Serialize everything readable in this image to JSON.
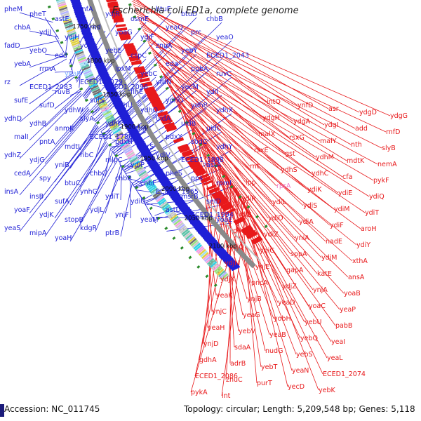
{
  "title": "Escherichia coli ED1a, complete genome",
  "footer": {
    "accession": "Accession: NC_011745",
    "summary": "Topology: circular; Length: 5,209,548 bp; Genes: 5,118"
  },
  "colors": {
    "forward": "#1f1fd6",
    "reverse": "#e8191b",
    "backbone": "#8a8a8a",
    "tick": "#2a8a2a",
    "highlight_fwd": "#7fb0ff",
    "highlight_rev": "#f07ac8"
  },
  "kbp_labels": [
    "1700 kbp",
    "1750 kbp",
    "1800 kbp",
    "1850 kbp",
    "1900 kbp",
    "1950 kbp",
    "2000 kbp",
    "2050 kbp",
    "2100 kbp"
  ],
  "forward_genes": [
    "pheM",
    "pheT",
    "astE",
    "infA",
    "ydjR",
    "osmE",
    "btuE",
    "btuD",
    "chbB",
    "chbA",
    "ydjJ",
    "ydjH",
    "rnd",
    "yoaG",
    "ydjF",
    "yeaQ",
    "prc",
    "yeaO",
    "fadD",
    "yebO",
    "edd",
    "yobF",
    "yebE",
    "cspC",
    "znuA",
    "yebY",
    "ECED1_2043",
    "yebA",
    "rrmA",
    "yeaR",
    "J",
    "lpxM",
    "yebC",
    "eda",
    "ppbA",
    "ruvC",
    "rz",
    "ECED1_2083",
    "ruvB",
    "ECED1_2079",
    "ECED1_2096",
    "flhE",
    "yfdN",
    "yecM",
    "ydiI",
    "sufE",
    "sufD",
    "ydhW",
    "sufS",
    "ydhU",
    "ydhQ",
    "ydhO",
    "ydhP",
    "ydhX",
    "ydhD",
    "ydhB",
    "anmK",
    "slyA",
    "ydhF",
    "ydhA",
    "uidA",
    "uidB",
    "uidC",
    "malI",
    "pntA",
    "mdtI",
    "ECED1_1786",
    "pdxH",
    "tyrS",
    "pdxY",
    "sodC",
    "ydhY",
    "ydhZ",
    "ydjG",
    "yniB",
    "ribC",
    "mlpC",
    "ydiP",
    "ydiV",
    "ECED1_1898",
    "astA",
    "cedA",
    "spy",
    "btuC",
    "chbC",
    "chbR",
    "chbF",
    "pheS",
    "pps",
    "rpmI",
    "insA",
    "insB",
    "sufA",
    "ynhG",
    "ydiT",
    "ydiU",
    "ECED1_1965",
    "msrB",
    "seID",
    "yoaF",
    "ydjK",
    "stopB",
    "ydjL",
    "ynjF",
    "yeaM",
    "astD",
    "ECED1_1994",
    "yoaE",
    "yeaS",
    "mipA",
    "yoaH",
    "kdgR",
    "ptrB"
  ],
  "reverse_genes": [
    "intQ",
    "ynfD",
    "asr",
    "ydgD",
    "ydgG",
    "ydgH",
    "ydgA",
    "ydgI",
    "add",
    "rnfD",
    "malX",
    "rsxG",
    "malY",
    "nth",
    "slyB",
    "rsxE",
    "gst",
    "ydhM",
    "mdtK",
    "nemA",
    "rnt",
    "ydhS",
    "ydhC",
    "cfa",
    "pykF",
    "lpp",
    "rprA",
    "ydiK",
    "ydiE",
    "ydiQ",
    "ydiR",
    "ydiL",
    "ydiS",
    "ydiM",
    "ydiT",
    "ydiB",
    "ydiD",
    "ydiA",
    "ydiF",
    "aroH",
    "pfkB",
    "ydiZ",
    "yniA",
    "nadE",
    "ydiY",
    "ydjQ",
    "yniC",
    "sppA",
    "ydjM",
    "xthA",
    "ydjN",
    "ynjE",
    "gapA",
    "katE",
    "ansA",
    "ydjX",
    "pncA",
    "ydjZ",
    "ynjA",
    "yoaB",
    "yeaK",
    "ynjB",
    "yeaD",
    "yoaC",
    "yeaP",
    "ynjC",
    "yeaG",
    "yobH",
    "yebU",
    "pabB",
    "yeaH",
    "yebV",
    "yeaB",
    "yebQ",
    "yeaI",
    "ynjD",
    "sdaA",
    "nudG",
    "yebS",
    "yeaL",
    "gdhA",
    "adrB",
    "yebT",
    "yeaN",
    "ECED1_2074",
    "ECED1_2086",
    "znuC",
    "purT",
    "yecD",
    "yebK",
    "pykA",
    "int"
  ]
}
